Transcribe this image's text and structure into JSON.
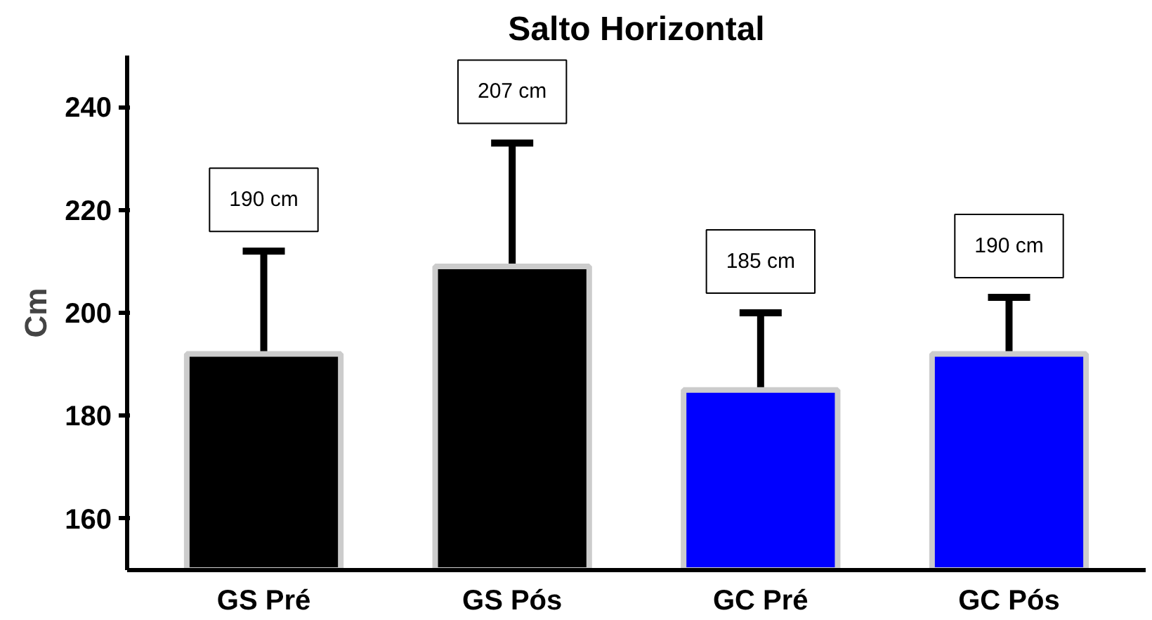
{
  "chart_data": {
    "type": "bar",
    "title": "Salto Horizontal",
    "ylabel": "Cm",
    "categories": [
      "GS Pré",
      "GS Pós",
      "GC Pré",
      "GC Pós"
    ],
    "values": [
      192,
      209,
      185,
      192
    ],
    "colors": [
      "#000000",
      "#000000",
      "#0000ff",
      "#0000ff"
    ],
    "errors": [
      [
        192,
        212
      ],
      [
        209,
        233
      ],
      [
        185,
        200
      ],
      [
        192,
        203
      ]
    ],
    "ylim": [
      150,
      250
    ],
    "yticks": [
      160,
      180,
      200,
      220,
      240
    ],
    "grid": false,
    "annotations": [
      "190 cm",
      "207 cm",
      "185 cm",
      "190 cm"
    ]
  }
}
